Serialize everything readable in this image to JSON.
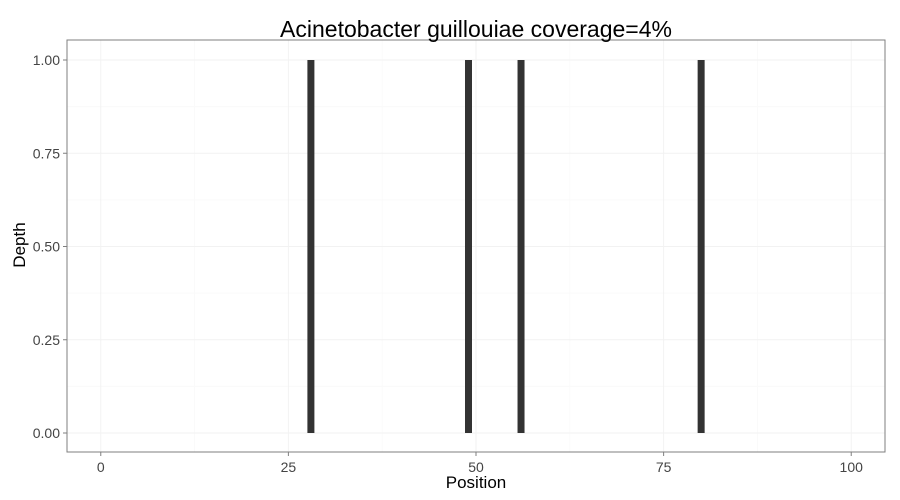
{
  "chart_data": {
    "type": "bar",
    "title": "Acinetobacter guillouiae coverage=4%",
    "xlabel": "Position",
    "ylabel": "Depth",
    "xlim": [
      -4.5,
      104.5
    ],
    "ylim": [
      0,
      1
    ],
    "x_ticks": [
      0,
      25,
      50,
      75,
      100
    ],
    "x_tick_labels": [
      "0",
      "25",
      "50",
      "75",
      "100"
    ],
    "y_ticks": [
      0,
      0.25,
      0.5,
      0.75,
      1
    ],
    "y_tick_labels": [
      "0.00",
      "0.25",
      "0.50",
      "0.75",
      "1.00"
    ],
    "grid": true,
    "series": [
      {
        "x": [
          28,
          49,
          56,
          80
        ],
        "values": [
          1,
          1,
          1,
          1
        ]
      }
    ],
    "colors": {
      "bar": "#333333",
      "panel_border": "#7f7f7f",
      "grid_major": "#f2f2f2",
      "grid_minor": "#fafafa",
      "tick_text": "#444444"
    }
  }
}
